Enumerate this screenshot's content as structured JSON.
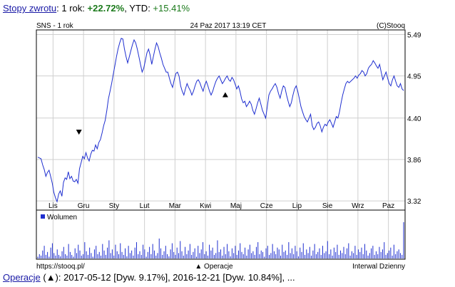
{
  "header": {
    "link_label": "Stopy zwrotu",
    "period_text": ": 1 rok: ",
    "period_return": "+22.72%",
    "ytd_text": ", YTD: ",
    "ytd_return": "+15.41%"
  },
  "chart_info": {
    "symbol_label": "SNS - 1 rok",
    "timestamp": "24 Paz 2017 13:19 CET",
    "copyright": "(C)Stooq",
    "source_url": "https://stooq.pl/",
    "operations_legend": "▲ Operacje",
    "interval_label": "Interwal Dzienny"
  },
  "footer": {
    "link_label": "Operacje",
    "text": " (▲): 2017-05-12 [Dyw. 9.17%], 2016-12-21 [Dyw. 10.84%], ..."
  },
  "colors": {
    "line": "#1f2fd0",
    "volume": "#1f2fd0",
    "grid": "#cfcfcf",
    "positive": "#1b7a1b",
    "link": "#1a1aa6"
  },
  "chart_data": [
    {
      "type": "line",
      "ylim": [
        3.2,
        5.55
      ],
      "yticks": [
        3.32,
        3.86,
        4.4,
        4.95,
        5.49
      ],
      "months": [
        "Lis",
        "Gru",
        "Sty",
        "Lut",
        "Mar",
        "Kwi",
        "Maj",
        "Cze",
        "Lip",
        "Sie",
        "Wrz",
        "Paz"
      ],
      "series": [
        {
          "values": [
            3.89,
            3.88,
            3.87,
            3.79,
            3.73,
            3.64,
            3.69,
            3.72,
            3.64,
            3.55,
            3.43,
            3.36,
            3.31,
            3.41,
            3.45,
            3.38,
            3.56,
            3.62,
            3.6,
            3.7,
            3.61,
            3.64,
            3.58,
            3.57,
            3.6,
            3.55,
            3.74,
            3.82,
            3.9,
            3.87,
            3.95,
            3.88,
            3.84,
            3.93,
            3.98,
            3.97,
            4.05,
            4.0,
            4.08,
            4.12,
            4.2,
            4.3,
            4.37,
            4.5,
            4.65,
            4.75,
            4.85,
            4.97,
            5.08,
            5.2,
            5.3,
            5.38,
            5.44,
            5.43,
            5.3,
            5.2,
            5.12,
            5.2,
            5.28,
            5.36,
            5.42,
            5.38,
            5.3,
            5.2,
            5.1,
            5.0,
            5.05,
            5.15,
            5.25,
            5.3,
            5.22,
            5.1,
            5.2,
            5.3,
            5.38,
            5.33,
            5.25,
            5.18,
            5.1,
            5.05,
            5.0,
            5.0,
            4.92,
            4.85,
            4.8,
            4.9,
            4.98,
            5.0,
            4.95,
            4.82,
            4.75,
            4.7,
            4.78,
            4.85,
            4.8,
            4.76,
            4.7,
            4.75,
            4.82,
            4.88,
            4.9,
            4.86,
            4.8,
            4.75,
            4.83,
            4.88,
            4.82,
            4.75,
            4.7,
            4.75,
            4.82,
            4.88,
            4.92,
            4.95,
            4.9,
            4.85,
            4.88,
            4.92,
            4.95,
            4.9,
            4.88,
            4.93,
            4.9,
            4.84,
            4.78,
            4.82,
            4.75,
            4.65,
            4.6,
            4.62,
            4.55,
            4.58,
            4.62,
            4.58,
            4.5,
            4.45,
            4.52,
            4.6,
            4.66,
            4.58,
            4.5,
            4.45,
            4.4,
            4.55,
            4.7,
            4.75,
            4.78,
            4.82,
            4.85,
            4.8,
            4.72,
            4.66,
            4.75,
            4.82,
            4.8,
            4.7,
            4.62,
            4.55,
            4.6,
            4.7,
            4.78,
            4.82,
            4.75,
            4.65,
            4.55,
            4.48,
            4.42,
            4.38,
            4.35,
            4.4,
            4.45,
            4.3,
            4.25,
            4.28,
            4.33,
            4.35,
            4.3,
            4.22,
            4.28,
            4.32,
            4.3,
            4.35,
            4.38,
            4.33,
            4.28,
            4.35,
            4.42,
            4.4,
            4.48,
            4.6,
            4.7,
            4.78,
            4.85,
            4.88,
            4.86,
            4.88,
            4.9,
            4.92,
            4.95,
            4.92,
            4.96,
            4.98,
            5.02,
            5.0,
            4.95,
            4.98,
            5.05,
            5.08,
            5.1,
            5.15,
            5.12,
            5.08,
            5.05,
            5.1,
            5.0,
            4.9,
            4.95,
            5.0,
            4.92,
            4.85,
            4.82,
            4.9,
            4.95,
            4.88,
            4.82,
            4.8,
            4.85,
            4.78,
            4.76
          ]
        }
      ],
      "markers": [
        {
          "type": "down",
          "month_pos": 1.35,
          "value": 4.22
        },
        {
          "type": "up",
          "month_pos": 6.15,
          "value": 4.7
        }
      ]
    },
    {
      "type": "bar",
      "title": "Wolumen",
      "values": [
        0.05,
        0.12,
        0.08,
        0.22,
        0.35,
        0.1,
        0.18,
        0.05,
        0.3,
        0.42,
        0.15,
        0.08,
        0.25,
        0.1,
        0.06,
        0.2,
        0.32,
        0.12,
        0.08,
        0.4,
        0.18,
        0.1,
        0.05,
        0.28,
        0.15,
        0.38,
        0.22,
        0.08,
        0.12,
        0.45,
        0.2,
        0.1,
        0.3,
        0.15,
        0.05,
        0.25,
        0.35,
        0.12,
        0.18,
        0.08,
        0.4,
        0.22,
        0.1,
        0.3,
        0.5,
        0.15,
        0.25,
        0.08,
        0.38,
        0.2,
        0.12,
        0.42,
        0.18,
        0.1,
        0.28,
        0.06,
        0.35,
        0.15,
        0.22,
        0.08,
        0.3,
        0.45,
        0.12,
        0.2,
        0.1,
        0.38,
        0.25,
        0.05,
        0.18,
        0.32,
        0.12,
        0.4,
        0.22,
        0.08,
        0.15,
        0.55,
        0.28,
        0.1,
        0.2,
        0.35,
        0.12,
        0.06,
        0.25,
        0.42,
        0.18,
        0.1,
        0.3,
        0.15,
        0.48,
        0.2,
        0.08,
        0.32,
        0.12,
        0.22,
        0.4,
        0.1,
        0.18,
        0.28,
        0.05,
        0.35,
        0.15,
        0.25,
        0.45,
        0.12,
        0.2,
        0.08,
        0.38,
        0.22,
        0.3,
        0.1,
        0.15,
        0.5,
        0.18,
        0.25,
        0.08,
        0.32,
        0.12,
        0.4,
        0.2,
        0.06,
        0.28,
        0.15,
        0.35,
        0.1,
        0.22,
        0.42,
        0.18,
        0.12,
        0.3,
        0.08,
        0.25,
        0.38,
        0.15,
        0.2,
        0.1,
        0.32,
        0.45,
        0.12,
        0.22,
        0.18,
        0.05,
        0.28,
        0.35,
        0.1,
        0.15,
        0.4,
        0.2,
        0.12,
        0.3,
        0.25,
        0.08,
        0.38,
        0.18,
        0.22,
        0.1,
        0.45,
        0.15,
        0.28,
        0.12,
        0.35,
        0.2,
        0.06,
        0.3,
        0.18,
        0.42,
        0.1,
        0.25,
        0.15,
        0.32,
        0.08,
        0.22,
        0.4,
        0.12,
        0.18,
        0.28,
        0.1,
        0.35,
        0.15,
        0.2,
        0.48,
        0.12,
        0.25,
        0.08,
        0.3,
        0.18,
        0.38,
        0.1,
        0.22,
        0.15,
        0.32,
        0.12,
        0.28,
        0.42,
        0.08,
        0.2,
        0.15,
        0.35,
        0.1,
        0.25,
        0.18,
        0.3,
        0.12,
        0.4,
        0.22,
        0.08,
        0.15,
        0.28,
        0.35,
        0.1,
        0.2,
        0.12,
        0.32,
        0.18,
        0.25,
        0.45,
        0.1,
        0.15,
        0.22,
        0.3,
        0.08,
        0.38,
        0.12,
        0.2,
        0.25,
        0.15,
        0.1,
        1.0
      ]
    }
  ]
}
